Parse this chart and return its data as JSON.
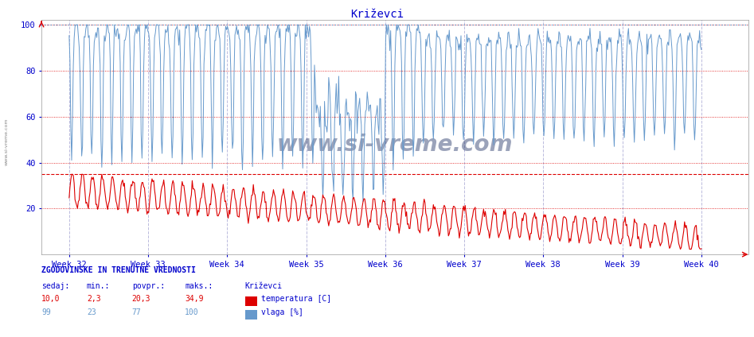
{
  "title": "Križevci",
  "bg_color": "#ffffff",
  "plot_bg_color": "#ffffff",
  "temp_color": "#dd0000",
  "humidity_color": "#6699cc",
  "text_color": "#0000cc",
  "grid_color": "#bbbbdd",
  "hline_red_color": "#dd0000",
  "hline_blue_dotted_color": "#6699cc",
  "x_tick_labels": [
    "Week 32",
    "Week 33",
    "Week 34",
    "Week 35",
    "Week 36",
    "Week 37",
    "Week 38",
    "Week 39",
    "Week 40"
  ],
  "y_ticks": [
    20,
    40,
    60,
    80,
    100
  ],
  "ylim_min": 0,
  "ylim_max": 100,
  "num_points": 756,
  "hline_temp_max": 34.9,
  "hline_humidity_max": 100,
  "temp_avg": 20.3,
  "temp_min": 2.3,
  "temp_max": 34.9,
  "temp_current": 10.0,
  "humidity_avg": 77,
  "humidity_min": 23,
  "humidity_max": 100,
  "humidity_current": 99,
  "footer_text": "ZGODOVINSKE IN TRENUTNE VREDNOSTI",
  "footer_headers": [
    "sedaj:",
    "min.:",
    "povpr.:",
    "maks.:",
    "Križevci"
  ],
  "footer_row1": [
    "10,0",
    "2,3",
    "20,3",
    "34,9",
    "temperatura [C]"
  ],
  "footer_row2": [
    "99",
    "23",
    "77",
    "100",
    "vlaga [%]"
  ],
  "watermark": "www.si-vreme.com"
}
